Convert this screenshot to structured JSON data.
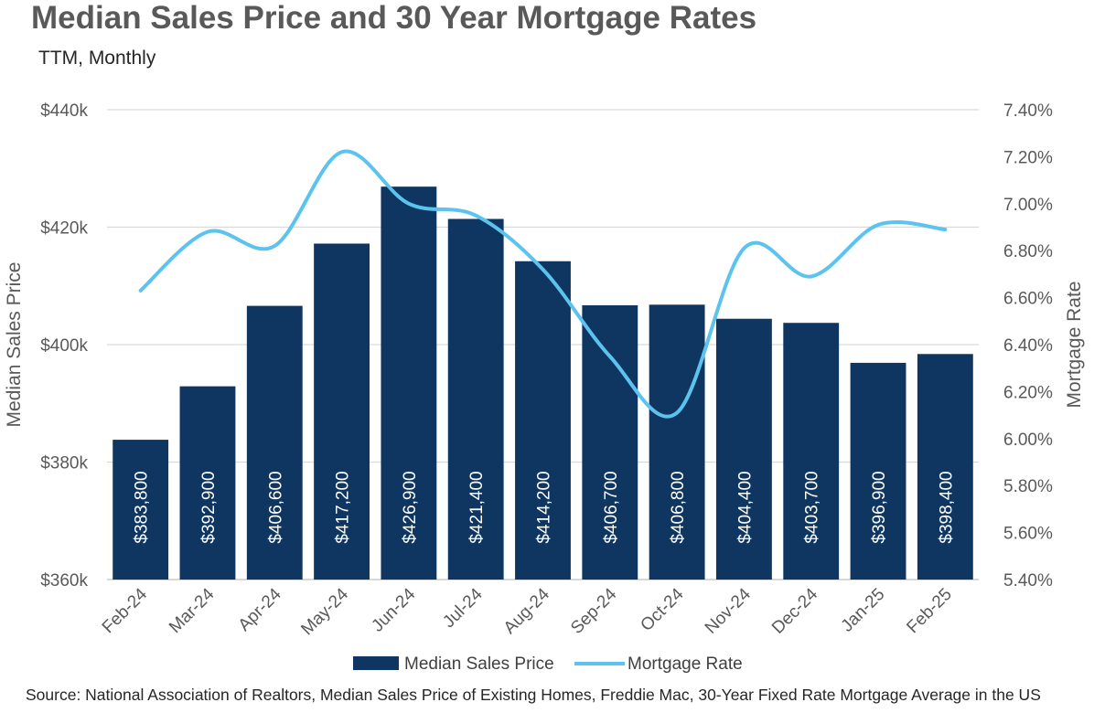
{
  "title": "Median Sales Price and 30 Year Mortgage Rates",
  "subtitle": "TTM, Monthly",
  "source": "Source: National Association of Realtors, Median Sales Price of Existing Homes, Freddie Mac, 30-Year Fixed Rate Mortgage Average in the US",
  "chart_data": {
    "type": "bar",
    "categories": [
      "Feb-24",
      "Mar-24",
      "Apr-24",
      "May-24",
      "Jun-24",
      "Jul-24",
      "Aug-24",
      "Sep-24",
      "Oct-24",
      "Nov-24",
      "Dec-24",
      "Jan-25",
      "Feb-25"
    ],
    "series": [
      {
        "name": "Median Sales Price",
        "type": "bar",
        "axis": "left",
        "color": "#0e3660",
        "values": [
          383800,
          392900,
          406600,
          417200,
          426900,
          421400,
          414200,
          406700,
          406800,
          404400,
          403700,
          396900,
          398400
        ],
        "labels": [
          "$383,800",
          "$392,900",
          "$406,600",
          "$417,200",
          "$426,900",
          "$421,400",
          "$414,200",
          "$406,700",
          "$406,800",
          "$404,400",
          "$403,700",
          "$396,900",
          "$398,400"
        ]
      },
      {
        "name": "Mortgage Rate",
        "type": "line",
        "axis": "right",
        "color": "#5bc3ee",
        "values": [
          6.63,
          6.88,
          6.82,
          7.22,
          7.0,
          6.95,
          6.72,
          6.35,
          6.11,
          6.81,
          6.69,
          6.91,
          6.89
        ]
      }
    ],
    "ylabel": "Median Sales Price",
    "y2label": "Mortgage Rate",
    "ylim": [
      360000,
      440000
    ],
    "yticks": [
      "$360k",
      "$380k",
      "$400k",
      "$420k",
      "$440k"
    ],
    "y2lim": [
      5.4,
      7.4
    ],
    "y2ticks": [
      "5.40%",
      "5.60%",
      "5.80%",
      "6.00%",
      "6.20%",
      "6.40%",
      "6.60%",
      "6.80%",
      "7.00%",
      "7.20%",
      "7.40%"
    ],
    "grid": true,
    "legend_position": "bottom"
  }
}
